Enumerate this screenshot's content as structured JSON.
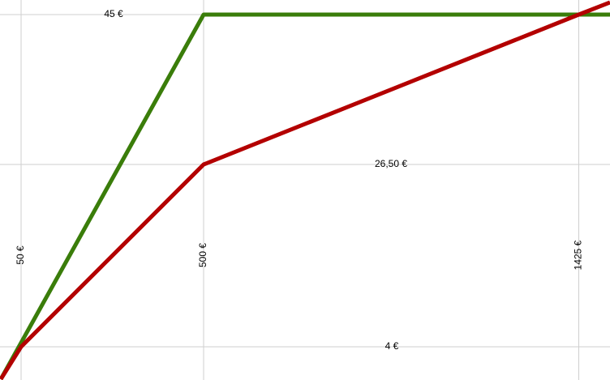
{
  "chart_data": {
    "type": "line",
    "series": [
      {
        "color": "#3a7d0a",
        "x": [
          0,
          500,
          1502
        ],
        "values": [
          0,
          45,
          45
        ]
      },
      {
        "color": "#b30000",
        "x": [
          0,
          50,
          500,
          1425,
          1502
        ],
        "values": [
          0,
          4,
          26.5,
          45,
          46.5
        ]
      }
    ],
    "xlim": [
      -2,
      1502
    ],
    "ylim": [
      -0.1,
      46.8
    ],
    "xticks": [
      {
        "value": 50,
        "label": "50 €"
      },
      {
        "value": 500,
        "label": "500 €"
      },
      {
        "value": 1425,
        "label": "1425 €"
      }
    ],
    "yticks": [
      {
        "value": 4,
        "label": "4 €"
      },
      {
        "value": 26.5,
        "label": "26,50 €"
      },
      {
        "value": 45,
        "label": "45 €"
      }
    ],
    "grid": true
  }
}
